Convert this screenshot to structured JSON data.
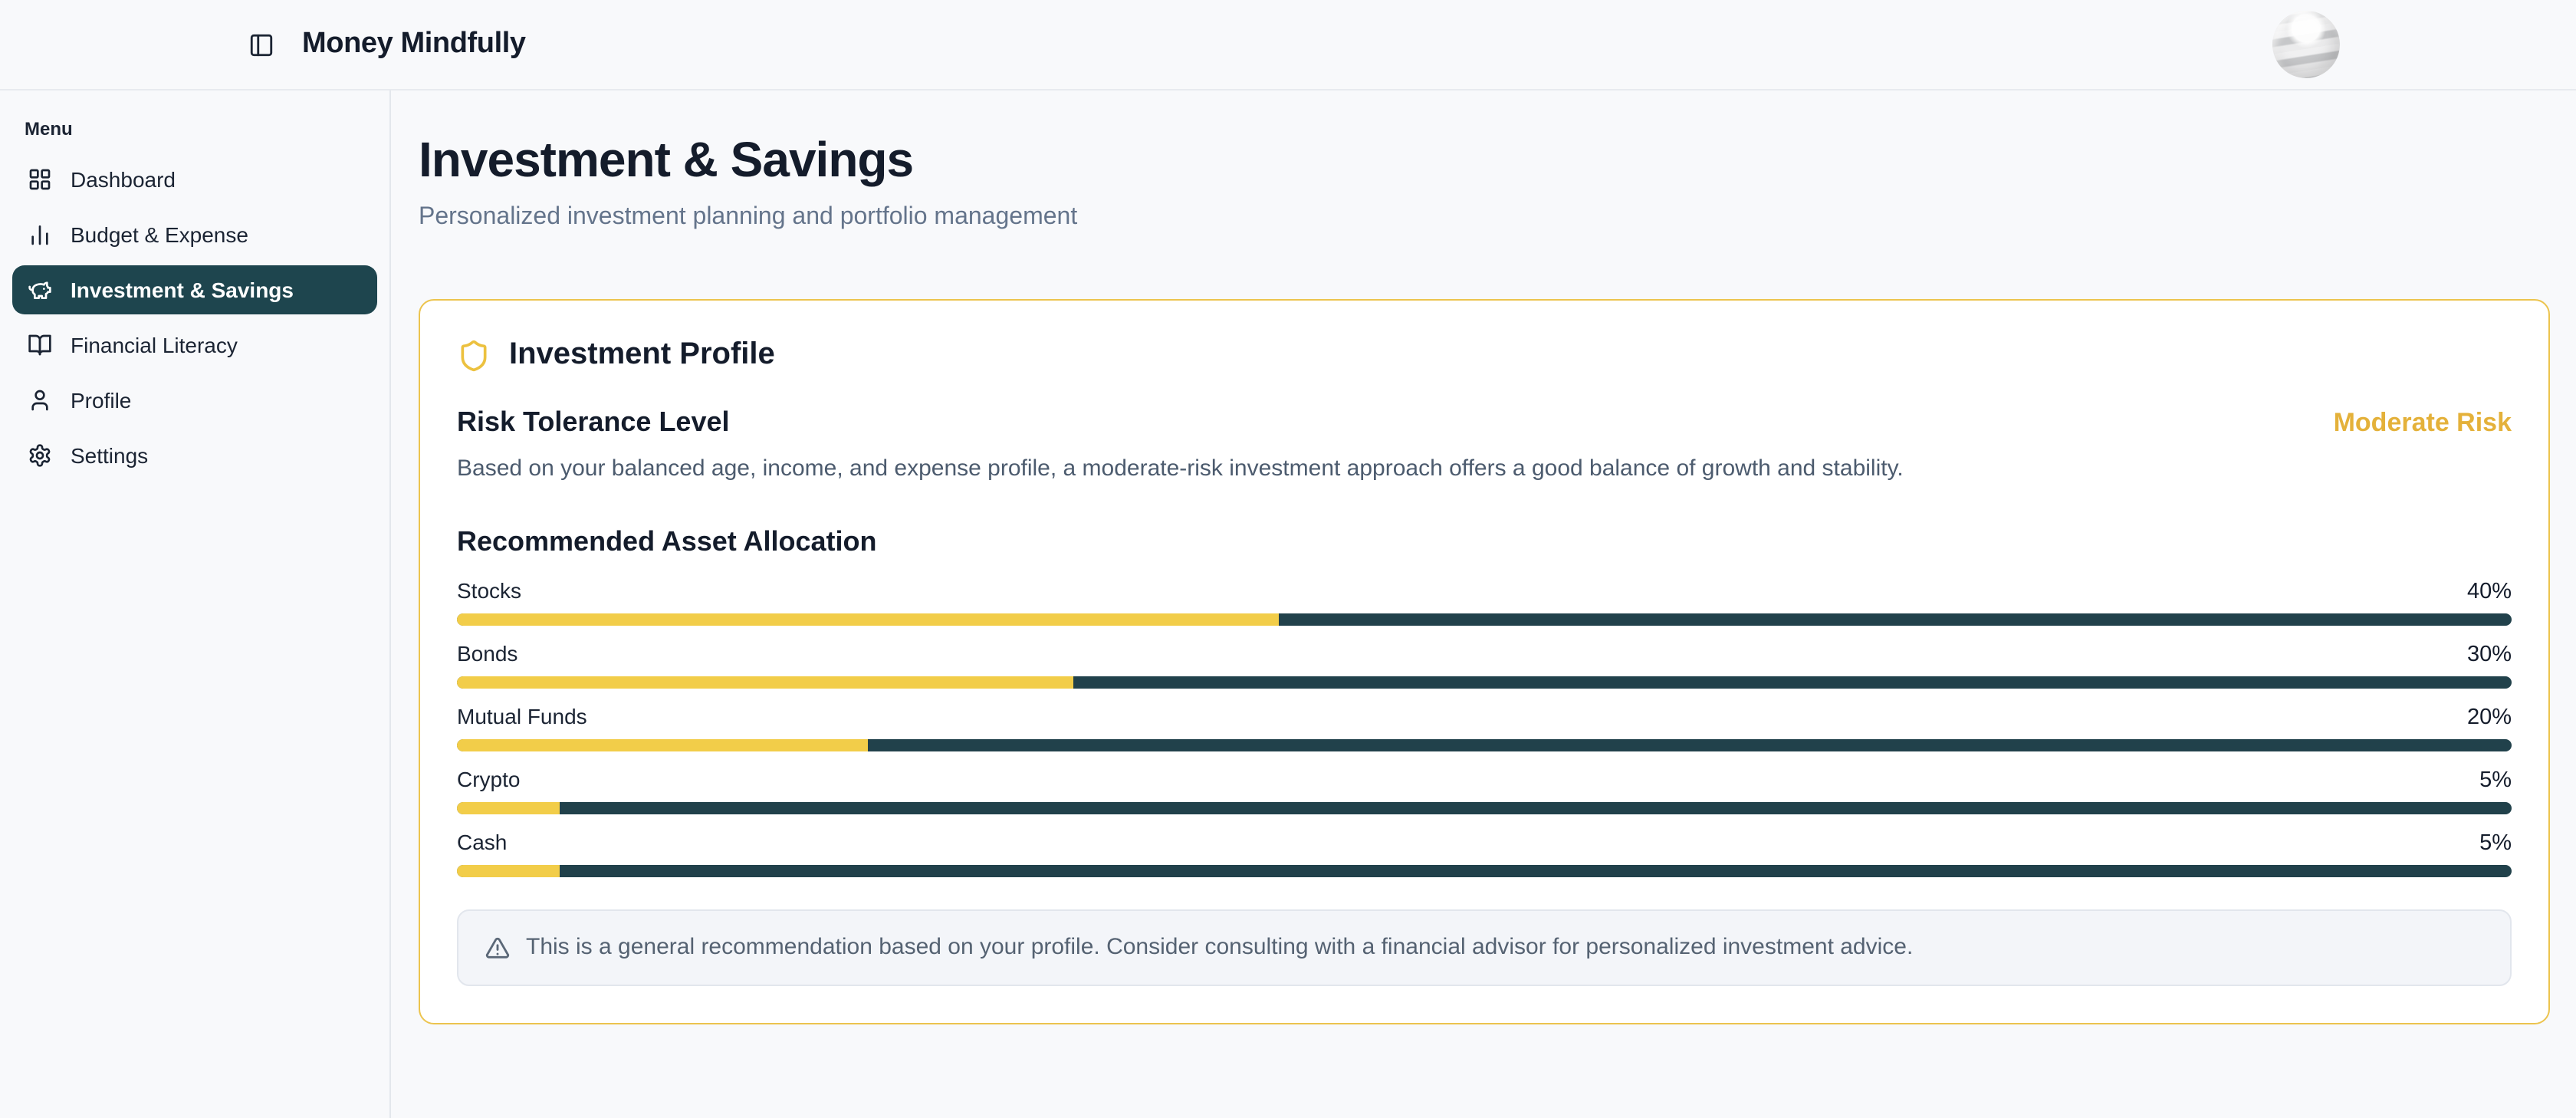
{
  "header": {
    "brand": "Money Mindfully",
    "toggle_icon": "panel-left-icon",
    "avatar_icon": "globe-photo-avatar"
  },
  "sidebar": {
    "section_label": "Menu",
    "items": [
      {
        "label": "Dashboard",
        "icon": "layout-grid-icon",
        "active": false
      },
      {
        "label": "Budget & Expense",
        "icon": "bar-chart-icon",
        "active": false
      },
      {
        "label": "Investment & Savings",
        "icon": "piggy-bank-icon",
        "active": true
      },
      {
        "label": "Financial Literacy",
        "icon": "book-open-icon",
        "active": false
      },
      {
        "label": "Profile",
        "icon": "user-icon",
        "active": false
      },
      {
        "label": "Settings",
        "icon": "gear-icon",
        "active": false
      }
    ]
  },
  "page": {
    "title": "Investment & Savings",
    "subtitle": "Personalized investment planning and portfolio management"
  },
  "profile_card": {
    "title": "Investment Profile",
    "title_icon": "shield-icon",
    "risk": {
      "heading": "Risk Tolerance Level",
      "level": "Moderate Risk",
      "description": "Based on your balanced age, income, and expense profile, a moderate-risk investment approach offers a good balance of growth and stability."
    },
    "allocation": {
      "heading": "Recommended Asset Allocation",
      "items": [
        {
          "label": "Stocks",
          "value": 40,
          "percent_label": "40%"
        },
        {
          "label": "Bonds",
          "value": 30,
          "percent_label": "30%"
        },
        {
          "label": "Mutual Funds",
          "value": 20,
          "percent_label": "20%"
        },
        {
          "label": "Crypto",
          "value": 5,
          "percent_label": "5%"
        },
        {
          "label": "Cash",
          "value": 5,
          "percent_label": "5%"
        }
      ]
    },
    "disclaimer": {
      "icon": "warning-triangle-icon",
      "text": "This is a general recommendation based on your profile. Consider consulting with a financial advisor for personalized investment advice."
    }
  },
  "colors": {
    "accent_gold_text": "#e4b13a",
    "bar_yellow": "#f2cd49",
    "bar_track_dark": "#21414b",
    "sidebar_active_bg": "#1e454e",
    "card_border_gold": "#ecc44e",
    "page_background": "#f8f9fb"
  }
}
